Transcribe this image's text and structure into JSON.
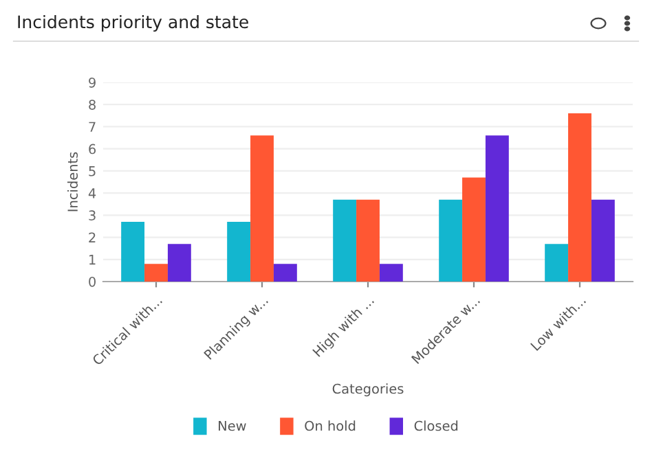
{
  "chart_data": {
    "type": "bar",
    "title": "Incidents priority and state",
    "xlabel": "Categories",
    "ylabel": "Incidents",
    "categories": [
      "Critical with...",
      "Planning w...",
      "High with ...",
      "Moderate w...",
      "Low with..."
    ],
    "series": [
      {
        "name": "New",
        "color": "#13b6cf",
        "values": [
          2.7,
          2.7,
          3.7,
          3.7,
          1.7
        ]
      },
      {
        "name": "On hold",
        "color": "#ff5733",
        "values": [
          0.8,
          6.6,
          3.7,
          4.7,
          7.6
        ]
      },
      {
        "name": "Closed",
        "color": "#6129d9",
        "values": [
          1.7,
          0.8,
          0.8,
          6.6,
          3.7
        ]
      }
    ],
    "ylim": [
      0,
      9
    ],
    "yticks": [
      0,
      1,
      2,
      3,
      4,
      5,
      6,
      7,
      8,
      9
    ],
    "grid": "y",
    "legend": "bottom"
  }
}
